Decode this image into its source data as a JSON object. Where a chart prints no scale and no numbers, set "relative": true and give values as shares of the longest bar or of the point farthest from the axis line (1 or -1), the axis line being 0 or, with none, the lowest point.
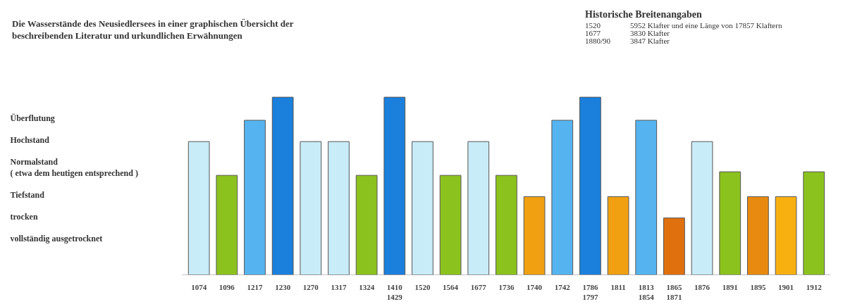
{
  "chart_data": {
    "type": "bar",
    "relative": true,
    "title": "Die Wasserstände des Neusiedlersees in einer graphischen Übersicht der\nbeschreibenden Literatur und urkundlichen Erwähnungen",
    "annotations": [
      "Historische Breitenangaben",
      "1520",
      "5952 Klafter und eine Länge von 17857 Klaftern",
      "1677",
      "3830 Klafter",
      "1880/90",
      "3847 Klafter",
      "Überflutung",
      "Hochstand",
      "Normalstand\n( etwa dem heutigen entsprechend )",
      "Tiefstand",
      "trocken",
      "vollständig ausgetrocknet"
    ],
    "categories": [
      "1074",
      "1096",
      "1217",
      "1230",
      "1270",
      "1317",
      "1324",
      "1410\n1429",
      "1520",
      "1564",
      "1677",
      "1736",
      "1740",
      "1742",
      "1786\n1797",
      "1811",
      "1813\n1854",
      "1865\n1871",
      "1876",
      "1891",
      "1895",
      "1901",
      "1912"
    ],
    "values": [
      0.75,
      0.56,
      0.87,
      1.0,
      0.75,
      0.75,
      0.56,
      1.0,
      0.75,
      0.56,
      0.75,
      0.56,
      0.44,
      0.87,
      1.0,
      0.44,
      0.87,
      0.32,
      0.75,
      0.58,
      0.44,
      0.44,
      0.58
    ],
    "colors": [
      "#c8ecf8",
      "#8cc21e",
      "#55b4f0",
      "#1a80dc",
      "#c8ecf8",
      "#c8ecf8",
      "#8cc21e",
      "#1a80dc",
      "#c8ecf8",
      "#8cc21e",
      "#c8ecf8",
      "#8cc21e",
      "#f0a010",
      "#55b4f0",
      "#1a80dc",
      "#f0a010",
      "#55b4f0",
      "#e0700e",
      "#c8ecf8",
      "#8cc21e",
      "#e88a10",
      "#f8b010",
      "#8cc21e"
    ],
    "grid": false
  }
}
